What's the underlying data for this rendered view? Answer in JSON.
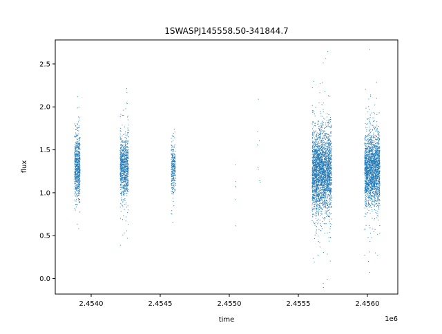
{
  "chart_data": {
    "type": "scatter",
    "title": "1SWASPJ145558.50-341844.7",
    "xlabel": "time",
    "ylabel": "flux",
    "x_offset_label": "1e6",
    "x_scale_factor": 1000000,
    "xlim": [
      2453740,
      2456220
    ],
    "ylim": [
      -0.18,
      2.78
    ],
    "xticks": [
      2454000,
      2454500,
      2455000,
      2455500,
      2456000
    ],
    "xtick_labels": [
      "2.4540",
      "2.4545",
      "2.4550",
      "2.4555",
      "2.4560"
    ],
    "yticks": [
      0.0,
      0.5,
      1.0,
      1.5,
      2.0,
      2.5
    ],
    "ytick_labels": [
      "0.0",
      "0.5",
      "1.0",
      "1.5",
      "2.0",
      "2.5"
    ],
    "grid": false,
    "marker_color": "#1f77b4",
    "series": [
      {
        "clusters": [
          {
            "x_range": [
              2453880,
              2453920
            ],
            "center": 1.3,
            "spread": 0.18,
            "count": 700
          },
          {
            "x_range": [
              2454210,
              2454270
            ],
            "center": 1.3,
            "spread": 0.18,
            "count": 900
          },
          {
            "x_range": [
              2454580,
              2454610
            ],
            "center": 1.28,
            "spread": 0.15,
            "count": 300
          },
          {
            "x_range": [
              2455040,
              2455050
            ],
            "center": 1.1,
            "spread": 0.35,
            "count": 6
          },
          {
            "x_range": [
              2455200,
              2455230
            ],
            "center": 1.2,
            "spread": 0.35,
            "count": 8
          },
          {
            "x_range": [
              2455600,
              2455740
            ],
            "center": 1.25,
            "spread": 0.23,
            "count": 2800
          },
          {
            "x_range": [
              2455980,
              2456090
            ],
            "center": 1.27,
            "spread": 0.2,
            "count": 2200
          }
        ]
      }
    ]
  }
}
